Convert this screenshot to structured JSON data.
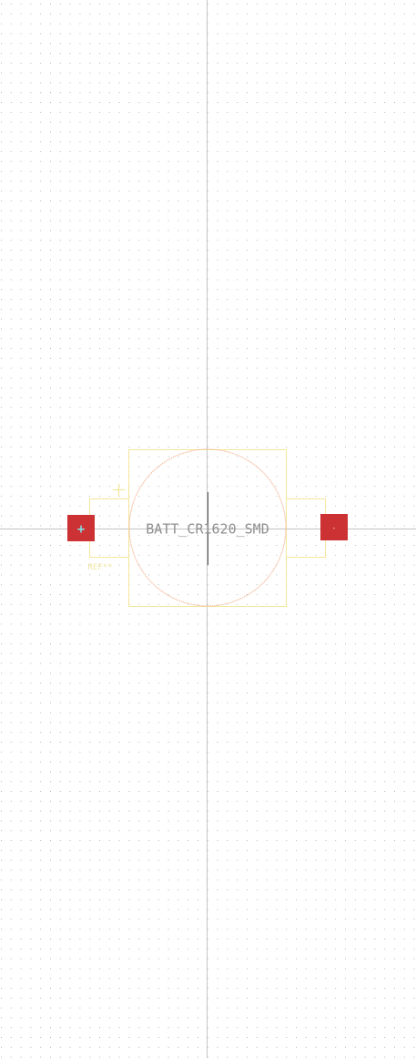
{
  "footprint": {
    "name": "BATT_CR1620_SMD",
    "reference": "REF**",
    "silk_plus_marker": "+"
  },
  "pads": [
    {
      "id": "pad-positive",
      "label": "+",
      "label_color": "#7fe7f0"
    },
    {
      "id": "pad-negative",
      "label": "-",
      "label_color": "#f2d2d2"
    }
  ],
  "colors": {
    "background": "#ffffff",
    "grid_dot": "#b8b8b8",
    "crosshair": "#c4c4c4",
    "pad_fill": "#cc3234",
    "outline": "#f4e79c",
    "courtyard_circle": "#f4b596",
    "name_text": "#8f8f8f",
    "ref_text": "#f1e6a6"
  }
}
